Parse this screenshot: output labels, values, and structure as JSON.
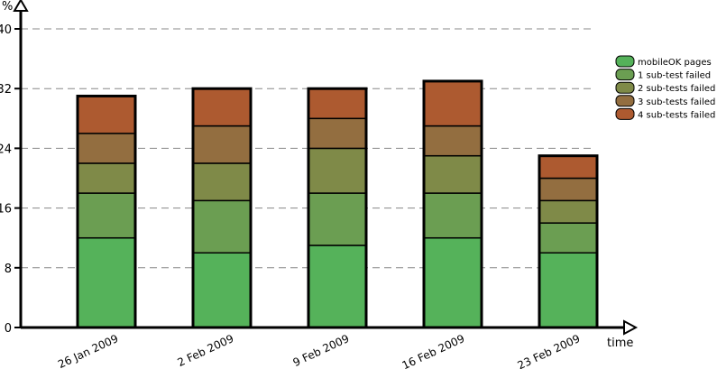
{
  "chart_data": {
    "type": "bar",
    "stacked": true,
    "xlabel": "time",
    "ylabel": "%",
    "ylim": [
      0,
      40
    ],
    "yticks": [
      0,
      8,
      16,
      24,
      32,
      40
    ],
    "grid": "dashed horizontal",
    "legend_position": "right",
    "categories": [
      "26 Jan 2009",
      "2 Feb 2009",
      "9 Feb 2009",
      "16 Feb 2009",
      "23 Feb 2009"
    ],
    "series": [
      {
        "name": "mobileOK pages",
        "color": "#55b25a",
        "values": [
          12,
          10,
          11,
          12,
          10
        ]
      },
      {
        "name": "1 sub-test failed",
        "color": "#6b9e52",
        "values": [
          6,
          7,
          7,
          6,
          4
        ]
      },
      {
        "name": "2 sub-tests failed",
        "color": "#7f8a48",
        "values": [
          4,
          5,
          6,
          5,
          3
        ]
      },
      {
        "name": "3 sub-tests failed",
        "color": "#936e40",
        "values": [
          4,
          5,
          4,
          4,
          3
        ]
      },
      {
        "name": "4 sub-tests failed",
        "color": "#ad5a30",
        "values": [
          5,
          5,
          4,
          6,
          3
        ]
      }
    ]
  }
}
